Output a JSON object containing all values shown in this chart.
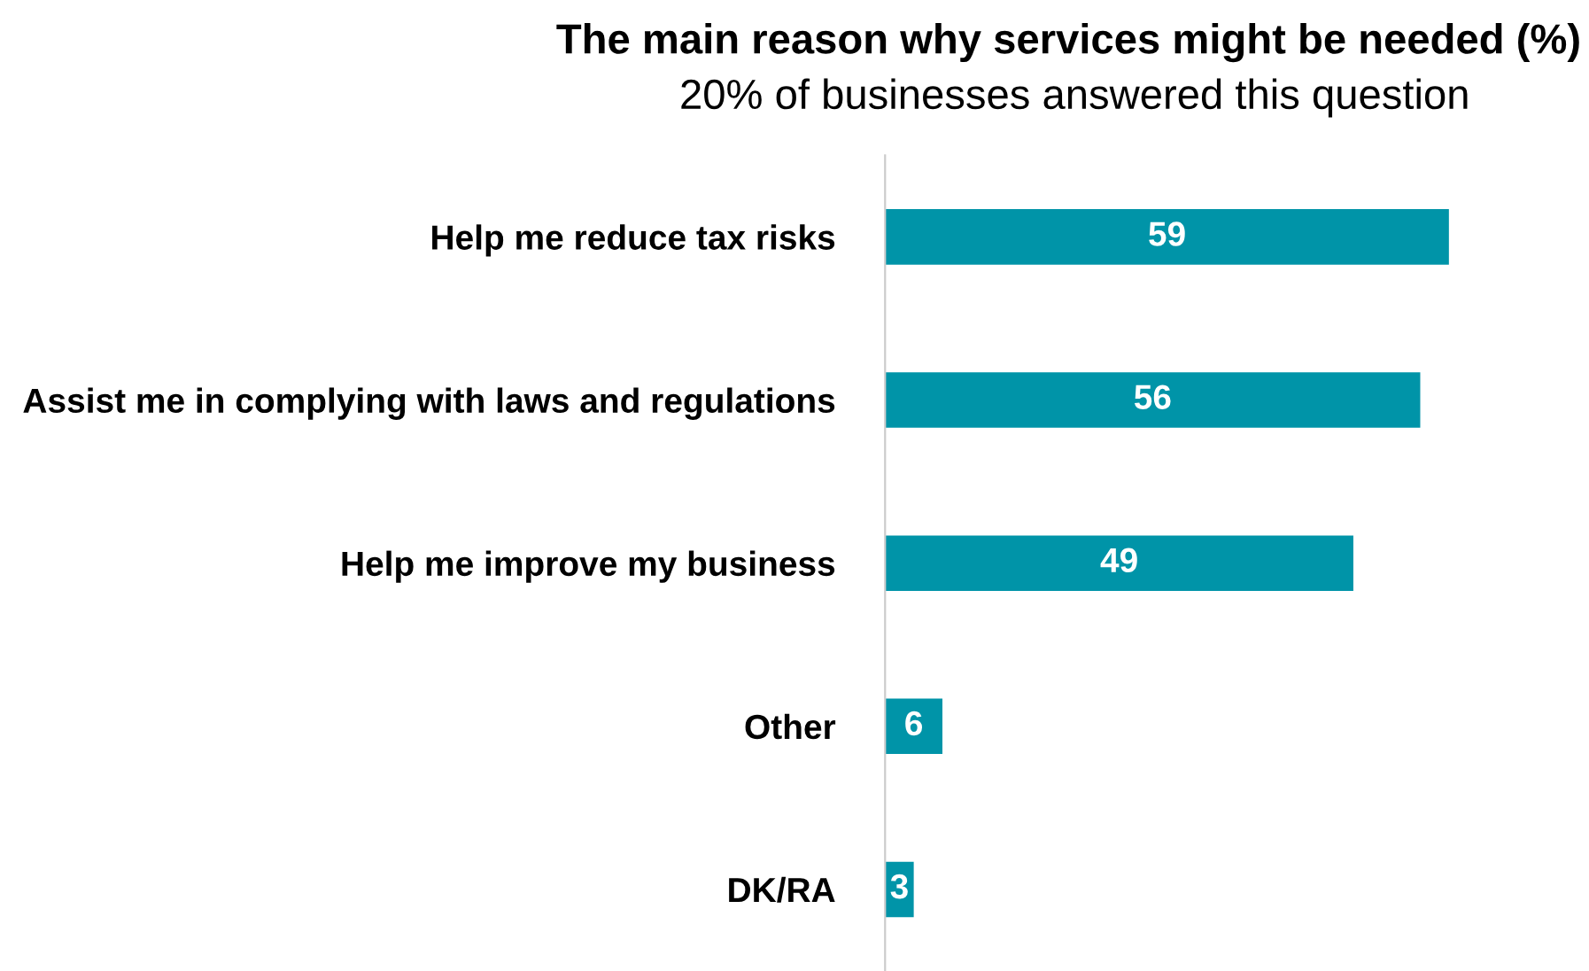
{
  "chart_data": {
    "type": "bar",
    "orientation": "horizontal",
    "title": "The main reason why services might be needed (%)",
    "subtitle": "20% of businesses answered this question",
    "categories": [
      "Help me reduce tax risks",
      "Assist me in complying with laws and regulations",
      "Help me improve my business",
      "Other",
      "DK/RA"
    ],
    "values": [
      59,
      56,
      49,
      6,
      3
    ],
    "color": "#0094a8",
    "data_labels": true,
    "grid": false,
    "legend": false
  }
}
